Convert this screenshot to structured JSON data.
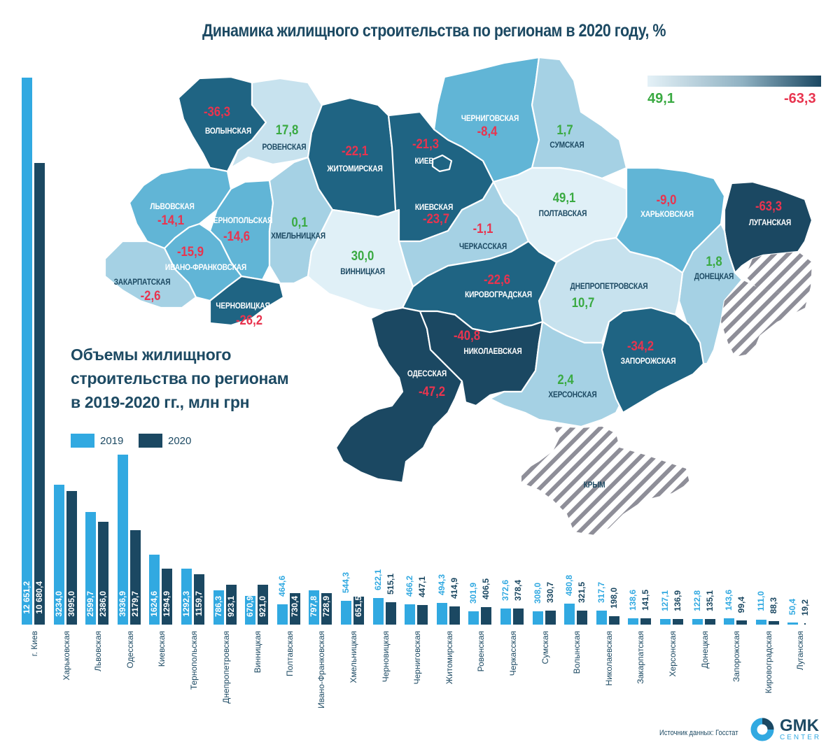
{
  "map": {
    "title": "Динамика жилищного строительства по регионам в 2020 году, %",
    "scale": {
      "min_label": "49,1",
      "max_label": "-63,3",
      "light_color": "#e4f1f7",
      "dark_color": "#1b4862"
    },
    "colors": {
      "negative": "#e8344f",
      "positive": "#3aaa42",
      "occupied_hatch": "#8e8e98"
    },
    "regions": [
      {
        "name": "Волынская",
        "value": "-36,3"
      },
      {
        "name": "Ровенская",
        "value": "17,8"
      },
      {
        "name": "Житомирская",
        "value": "-22,1"
      },
      {
        "name": "Киев",
        "value": "-21,3"
      },
      {
        "name": "Черниговская",
        "value": "-8,4"
      },
      {
        "name": "Сумская",
        "value": "1,7"
      },
      {
        "name": "Львовская",
        "value": "-14,1"
      },
      {
        "name": "Тернопольская",
        "value": "-14,6"
      },
      {
        "name": "Хмельницкая",
        "value": "0,1"
      },
      {
        "name": "Киевская",
        "value": "-23,7"
      },
      {
        "name": "Полтавская",
        "value": "49,1"
      },
      {
        "name": "Харьковская",
        "value": "-9,0"
      },
      {
        "name": "Луганская",
        "value": "-63,3"
      },
      {
        "name": "Ивано-Франковская",
        "value": "-15,9"
      },
      {
        "name": "Винницкая",
        "value": "30,0"
      },
      {
        "name": "Черкасская",
        "value": "-1,1"
      },
      {
        "name": "Закарпатская",
        "value": "-2,6"
      },
      {
        "name": "Черновицкая",
        "value": "-26,2"
      },
      {
        "name": "Кировоградская",
        "value": "-22,6"
      },
      {
        "name": "Днепропетровская",
        "value": "10,7"
      },
      {
        "name": "Донецкая",
        "value": "1,8"
      },
      {
        "name": "Николаевская",
        "value": "-40,8"
      },
      {
        "name": "Одесская",
        "value": "-47,2"
      },
      {
        "name": "Запорожская",
        "value": "-34,2"
      },
      {
        "name": "Херсонская",
        "value": "2,4"
      },
      {
        "name": "Крым",
        "value": ""
      }
    ]
  },
  "bars": {
    "title": "Объемы жилищного строительства по регионам в 2019-2020 гг., млн грн",
    "title_lines": [
      "Объемы жилищного",
      "строительства по регионам",
      "в 2019-2020 гг., млн грн"
    ],
    "legend": [
      {
        "label": "2019",
        "color": "#31a9e1"
      },
      {
        "label": "2020",
        "color": "#1b4862"
      }
    ]
  },
  "chart_data": [
    {
      "type": "bar",
      "title": "Объемы жилищного строительства по регионам в 2019-2020 гг., млн грн",
      "xlabel": "",
      "ylabel": "млн грн",
      "legend_position": "top-left",
      "grid": false,
      "categories": [
        "г. Киев",
        "Харьковская",
        "Львовская",
        "Одесская",
        "Киевская",
        "Тернопольская",
        "Днепропетровская",
        "Винницкая",
        "Полтавская",
        "Ивано-Франковская",
        "Хмельницкая",
        "Черновицкая",
        "Черниговская",
        "Житомирская",
        "Ровенская",
        "Черкасская",
        "Сумская",
        "Волынская",
        "Николаевская",
        "Закарпатская",
        "Херсонская",
        "Донецкая",
        "Запорожская",
        "Кировоградская",
        "Луганская"
      ],
      "series": [
        {
          "name": "2019",
          "color": "#31a9e1",
          "values": [
            12651.2,
            3234.0,
            2599.7,
            3936.9,
            1624.6,
            1292.3,
            786.3,
            670.9,
            464.6,
            797.8,
            544.3,
            622.1,
            466.2,
            494.3,
            301.9,
            372.6,
            308.0,
            480.8,
            317.7,
            138.6,
            127.1,
            122.8,
            143.6,
            111.0,
            50.4
          ],
          "labels": [
            "12 651,2",
            "3234,0",
            "2599,7",
            "3936,9",
            "1624,6",
            "1292,3",
            "786,3",
            "670,9",
            "464,6",
            "797,8",
            "544,3",
            "622,1",
            "466,2",
            "494,3",
            "301,9",
            "372,6",
            "308,0",
            "480,8",
            "317,7",
            "138,6",
            "127,1",
            "122,8",
            "143,6",
            "111,0",
            "50,4"
          ]
        },
        {
          "name": "2020",
          "color": "#1b4862",
          "values": [
            10680.4,
            3095.0,
            2386.0,
            2179.7,
            1294.9,
            1159.7,
            923.1,
            921.0,
            730.4,
            728.9,
            651.5,
            515.1,
            447.1,
            414.9,
            406.5,
            378.4,
            330.7,
            321.5,
            198.0,
            141.5,
            136.9,
            135.1,
            99.4,
            88.3,
            19.2
          ],
          "labels": [
            "10 680,4",
            "3095,0",
            "2386,0",
            "2179,7",
            "1294,9",
            "1159,7",
            "923,1",
            "921,0",
            "730,4",
            "728,9",
            "651,5",
            "515,1",
            "447,1",
            "414,9",
            "406,5",
            "378,4",
            "330,7",
            "321,5",
            "198,0",
            "141,5",
            "136,9",
            "135,1",
            "99,4",
            "88,3",
            "19,2"
          ]
        }
      ]
    },
    {
      "type": "heatmap",
      "title": "Динамика жилищного строительства по регионам в 2020 году, %",
      "categories": [
        "Волынская",
        "Ровенская",
        "Житомирская",
        "Киев",
        "Черниговская",
        "Сумская",
        "Львовская",
        "Тернопольская",
        "Хмельницкая",
        "Киевская",
        "Полтавская",
        "Харьковская",
        "Луганская",
        "Ивано-Франковская",
        "Винницкая",
        "Черкасская",
        "Закарпатская",
        "Черновицкая",
        "Кировоградская",
        "Днепропетровская",
        "Донецкая",
        "Николаевская",
        "Одесская",
        "Запорожская",
        "Херсонская"
      ],
      "values": [
        -36.3,
        17.8,
        -22.1,
        -21.3,
        -8.4,
        1.7,
        -14.1,
        -14.6,
        0.1,
        -23.7,
        49.1,
        -9.0,
        -63.3,
        -15.9,
        30.0,
        -1.1,
        -2.6,
        -26.2,
        -22.6,
        10.7,
        1.8,
        -40.8,
        -47.2,
        -34.2,
        2.4
      ],
      "scale_range": [
        49.1,
        -63.3
      ]
    }
  ],
  "footer": {
    "source": "Источник данных: Госстат",
    "logo_main": "GMK",
    "logo_sub": "CENTER"
  }
}
